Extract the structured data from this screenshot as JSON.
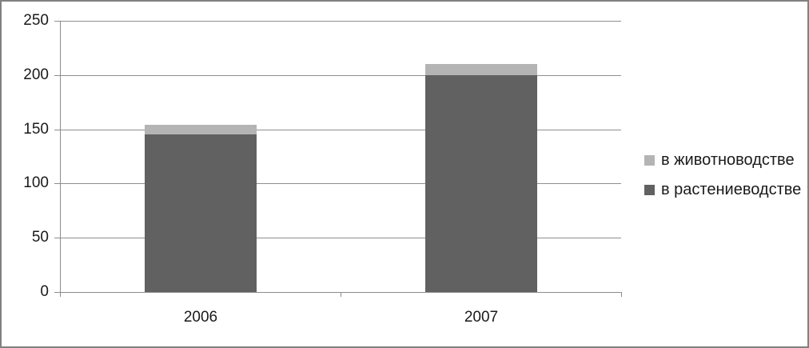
{
  "frame": {
    "background": "#ffffff",
    "border_color": "#818181"
  },
  "chart_data": {
    "type": "bar",
    "stacked": true,
    "title": "",
    "xlabel": "",
    "ylabel": "",
    "categories": [
      "2006",
      "2007"
    ],
    "series": [
      {
        "name": "в растениеводстве",
        "color": "#616161",
        "values": [
          145,
          200
        ]
      },
      {
        "name": "в животноводстве",
        "color": "#b4b4b4",
        "values": [
          9,
          10
        ]
      }
    ],
    "totals": [
      154,
      210
    ],
    "ylim": [
      0,
      250
    ],
    "yticks": [
      0,
      50,
      100,
      150,
      200,
      250
    ],
    "grid": true,
    "gridline_color": "#8f8f8f",
    "axis_color": "#8c8c8c",
    "legend_position": "right",
    "legend_items": [
      "в животноводстве",
      "в растениеводстве"
    ]
  }
}
